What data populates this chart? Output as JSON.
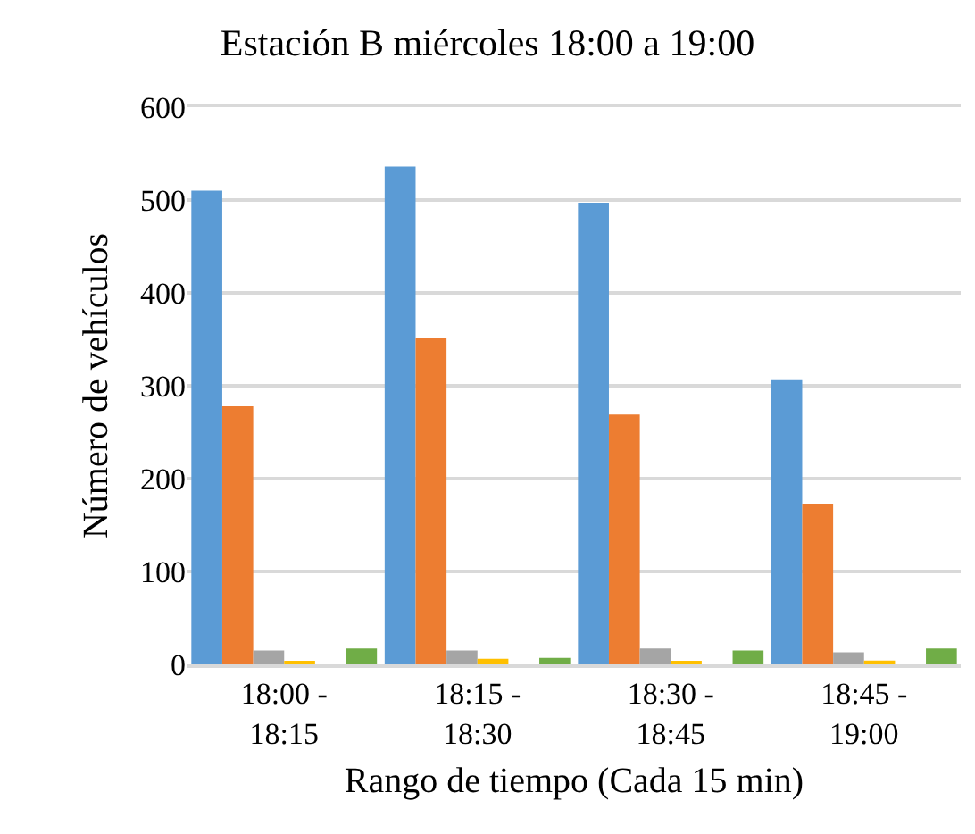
{
  "chart_data": {
    "type": "bar",
    "title": "Estación B miércoles 18:00 a 19:00",
    "xlabel": "Rango de tiempo (Cada 15 min)",
    "ylabel": "Número de vehículos",
    "categories": [
      "18:00 - 18:15",
      "18:15 - 18:30",
      "18:30 - 18:45",
      "18:45 - 19:00"
    ],
    "series": [
      {
        "color": "#5b9bd5",
        "values": [
          510,
          536,
          497,
          306
        ]
      },
      {
        "color": "#ed7d31",
        "values": [
          278,
          351,
          269,
          173
        ]
      },
      {
        "color": "#a5a5a5",
        "values": [
          15,
          15,
          17,
          13
        ]
      },
      {
        "color": "#ffc000",
        "values": [
          3,
          6,
          3,
          4
        ]
      },
      {
        "color": "#4472c4",
        "values": [
          0,
          0,
          0,
          0
        ]
      },
      {
        "color": "#70ad47",
        "values": [
          17,
          7,
          15,
          17
        ]
      }
    ],
    "ylim": [
      0,
      600
    ],
    "yticks": [
      0,
      100,
      200,
      300,
      400,
      500,
      600
    ],
    "grid": "y"
  }
}
